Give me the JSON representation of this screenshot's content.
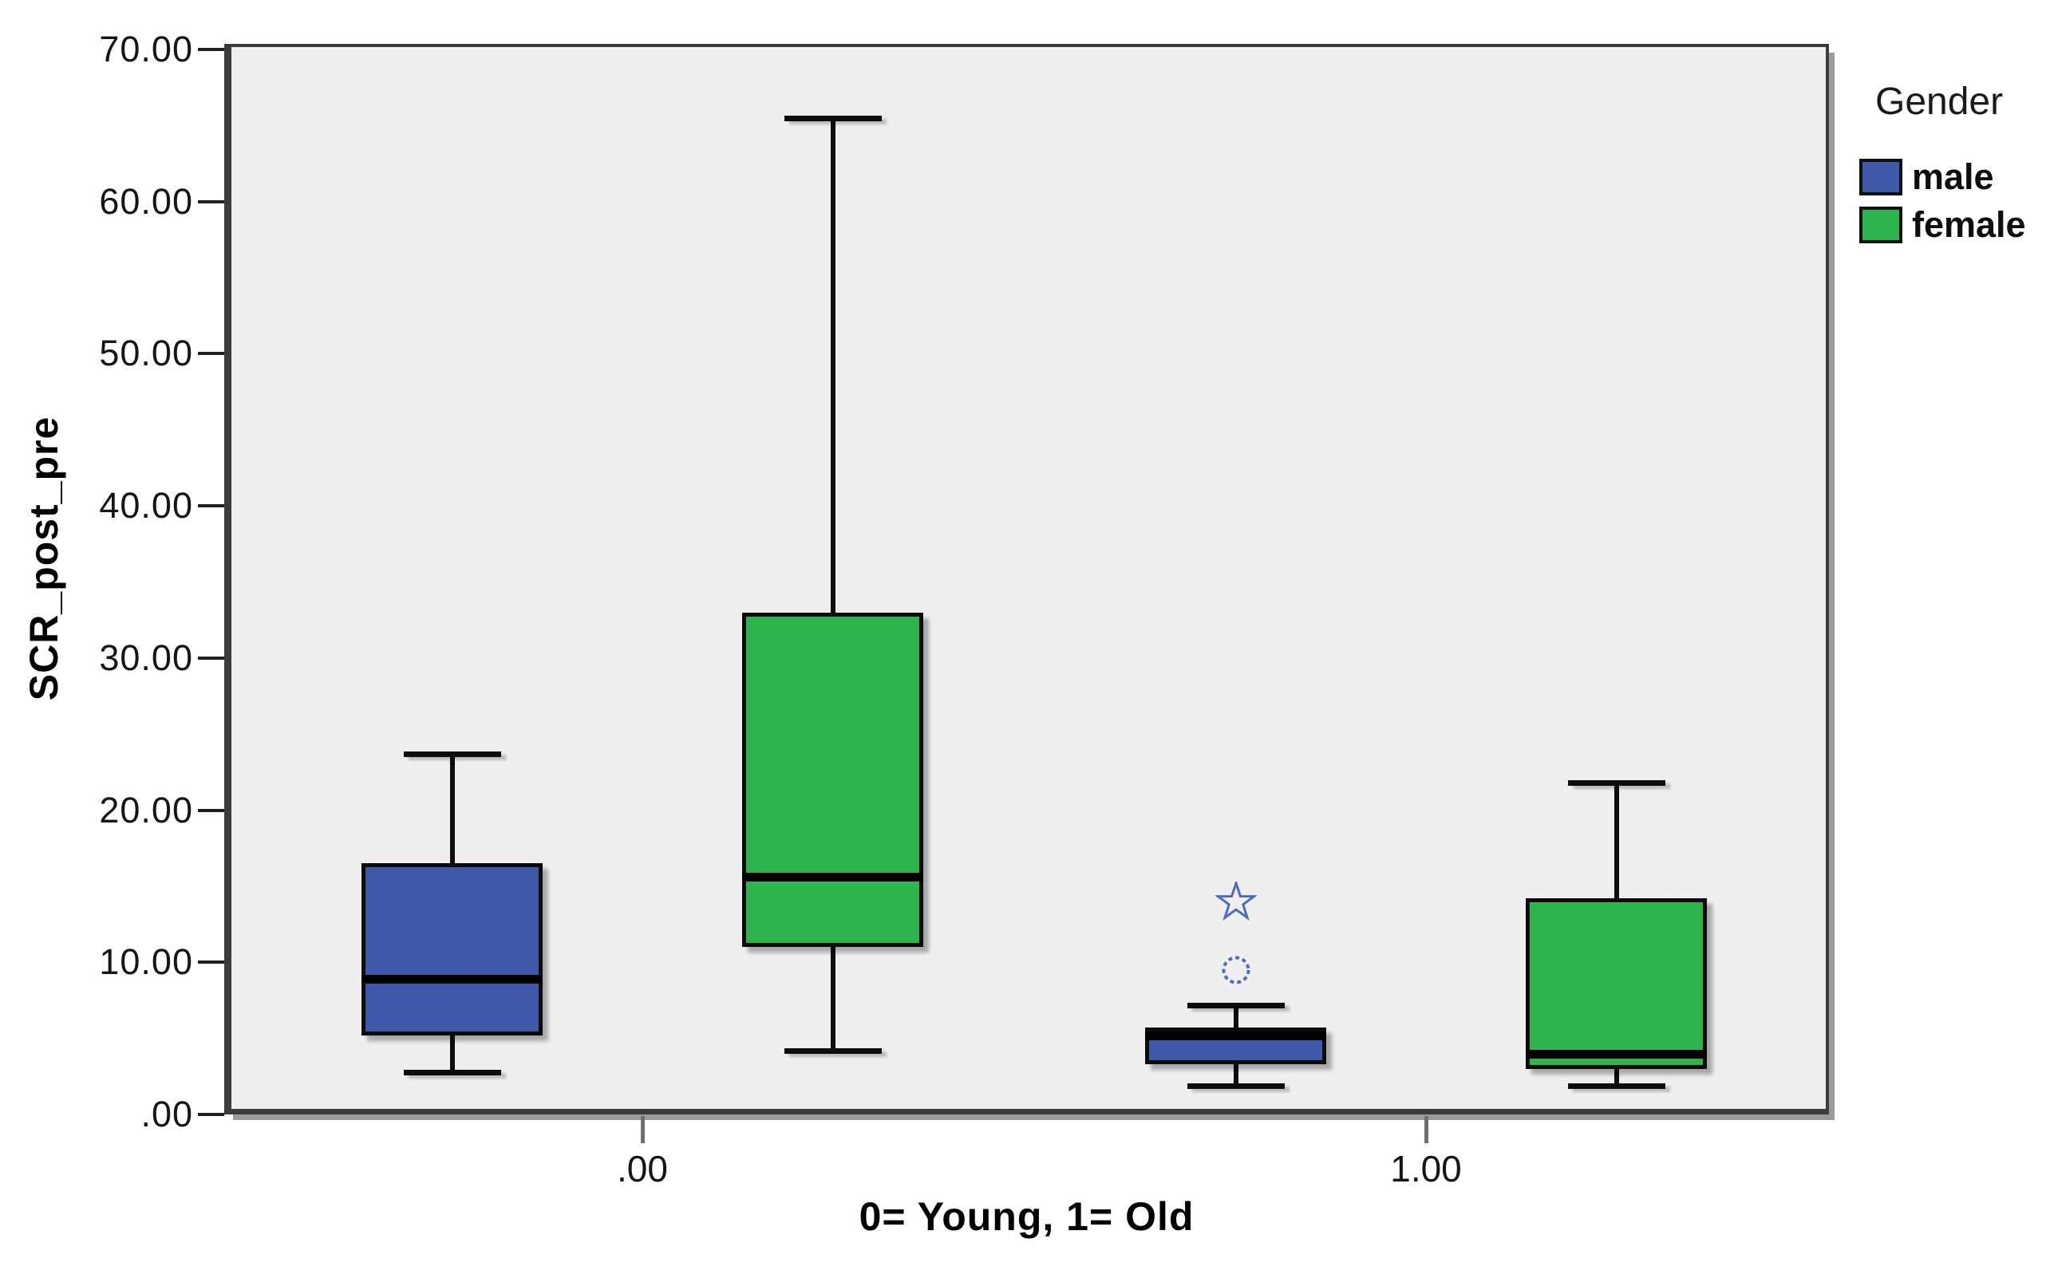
{
  "chart_data": {
    "type": "boxplot",
    "title": "",
    "xlabel": "0= Young, 1= Old",
    "ylabel": "SCR_post_pre",
    "ylim": [
      0,
      70
    ],
    "ytick_step": 10,
    "ytick_labels": [
      "70.00",
      "60.00",
      "50.00",
      "40.00",
      "30.00",
      "20.00",
      "10.00",
      ".00"
    ],
    "categories": [
      ".00",
      "1.00"
    ],
    "grid": false,
    "plot_background": "#efefef",
    "legend": {
      "title": "Gender",
      "position": "right",
      "entries": [
        {
          "label": "male",
          "color": "#3e58aa"
        },
        {
          "label": "female",
          "color": "#2db44c"
        }
      ]
    },
    "outlier_marker_color": "#4c6cc4",
    "series": [
      {
        "name": "male",
        "color": "#3e58aa",
        "boxes": [
          {
            "category": ".00",
            "whisker_low": 2.8,
            "q1": 5.2,
            "median": 8.9,
            "q3": 16.5,
            "whisker_high": 23.7,
            "outliers": [],
            "extremes": []
          },
          {
            "category": "1.00",
            "whisker_low": 1.9,
            "q1": 3.3,
            "median": 5.2,
            "q3": 5.7,
            "whisker_high": 7.2,
            "outliers": [
              9.5
            ],
            "extremes": [
              14.0
            ]
          }
        ]
      },
      {
        "name": "female",
        "color": "#2db44c",
        "boxes": [
          {
            "category": ".00",
            "whisker_low": 4.2,
            "q1": 11.0,
            "median": 15.6,
            "q3": 33.0,
            "whisker_high": 65.5,
            "outliers": [],
            "extremes": []
          },
          {
            "category": "1.00",
            "whisker_low": 1.9,
            "q1": 3.0,
            "median": 4.0,
            "q3": 14.2,
            "whisker_high": 21.8,
            "outliers": [],
            "extremes": []
          }
        ]
      }
    ]
  }
}
